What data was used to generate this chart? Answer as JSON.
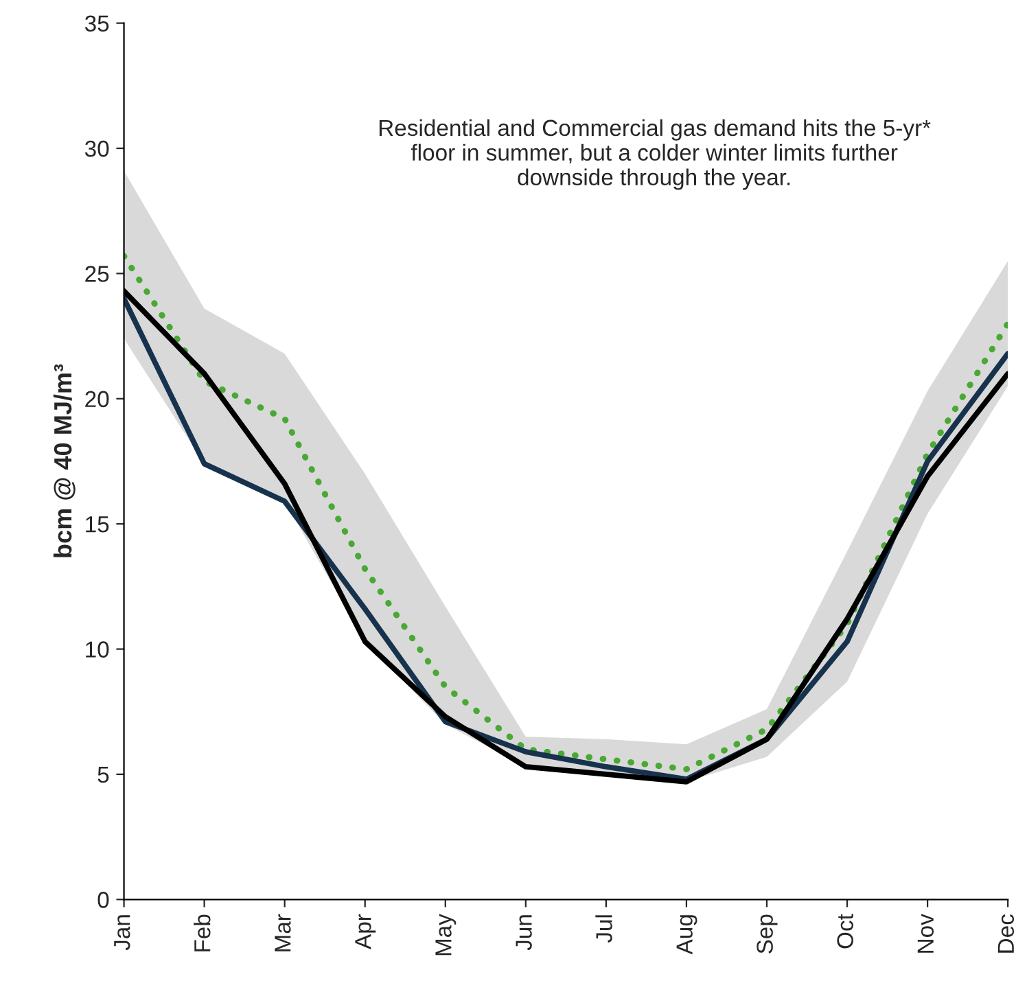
{
  "chart_data": {
    "type": "line",
    "ylabel": "bcm @ 40 MJ/m³",
    "categories": [
      "Jan",
      "Feb",
      "Mar",
      "Apr",
      "May",
      "Jun",
      "Jul",
      "Aug",
      "Sep",
      "Oct",
      "Nov",
      "Dec"
    ],
    "series": [
      {
        "color": "#4aa834",
        "line_style": "dotted",
        "values": [
          25.7,
          20.7,
          19.2,
          13.2,
          8.5,
          6.0,
          5.6,
          5.2,
          6.8,
          11.0,
          17.8,
          23.0
        ],
        "lower": [
          22.4,
          17.4,
          15.9,
          10.3,
          7.0,
          5.3,
          5.0,
          4.7,
          5.7,
          8.7,
          15.4,
          20.5
        ],
        "upper": [
          29.1,
          23.6,
          21.8,
          17.0,
          11.7,
          6.5,
          6.4,
          6.2,
          7.6,
          13.9,
          20.3,
          25.5
        ]
      },
      {
        "color": "#17324d",
        "line_style": "solid",
        "values": [
          24.0,
          17.4,
          15.9,
          11.6,
          7.1,
          5.9,
          5.3,
          4.8,
          6.4,
          10.3,
          17.5,
          21.8
        ]
      },
      {
        "color": "#000000",
        "line_style": "solid",
        "values": [
          24.3,
          21.0,
          16.6,
          10.3,
          7.3,
          5.3,
          5.0,
          4.7,
          6.4,
          11.2,
          16.9,
          21.0
        ]
      }
    ],
    "ylim": [
      0,
      35
    ],
    "yticks": [
      0,
      5,
      10,
      15,
      20,
      25,
      30,
      35
    ],
    "grid": false,
    "legend": false,
    "annotations": [
      "Residential and Commercial gas demand hits the 5-yr* floor in summer, but a colder winter limits further downside through the year."
    ]
  }
}
